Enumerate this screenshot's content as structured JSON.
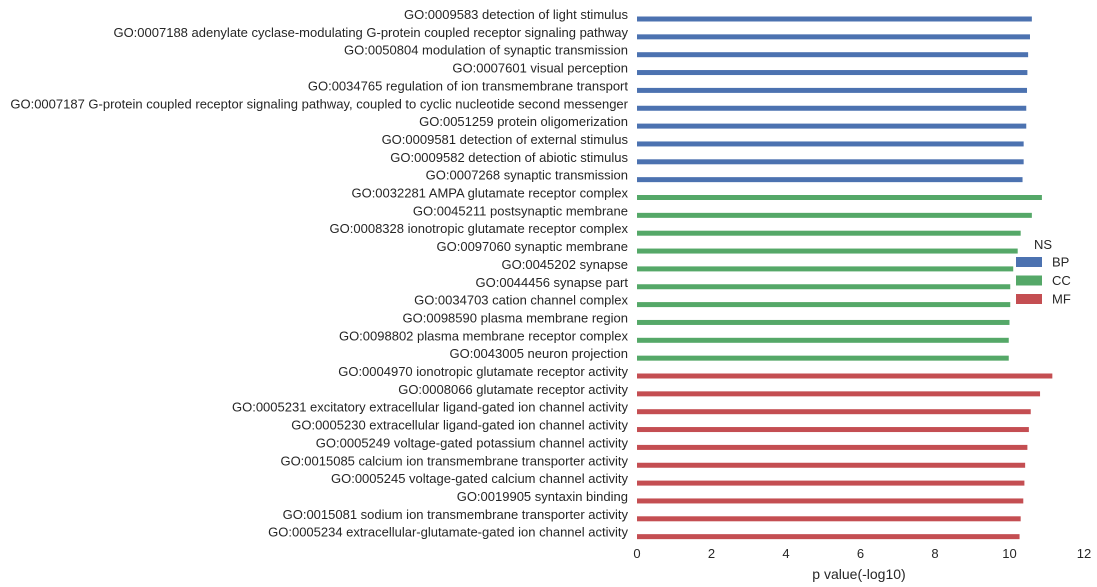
{
  "chart_data": {
    "type": "bar",
    "orientation": "horizontal",
    "xlabel": "p value(-log10)",
    "xlim": [
      0,
      12
    ],
    "xticks": [
      0,
      2,
      4,
      6,
      8,
      10,
      12
    ],
    "grid": false,
    "legend": {
      "title": "NS",
      "placement": "right",
      "entries": [
        {
          "name": "BP",
          "color": "#4c72b0"
        },
        {
          "name": "CC",
          "color": "#55a868"
        },
        {
          "name": "MF",
          "color": "#c44e52"
        }
      ]
    },
    "categories": [
      "GO:0009583 detection of light stimulus",
      "GO:0007188 adenylate cyclase-modulating G-protein coupled receptor signaling pathway",
      "GO:0050804 modulation of synaptic transmission",
      "GO:0007601 visual perception",
      "GO:0034765 regulation of ion transmembrane transport",
      "GO:0007187 G-protein coupled receptor signaling pathway, coupled to cyclic nucleotide second messenger",
      "GO:0051259 protein oligomerization",
      "GO:0009581 detection of external stimulus",
      "GO:0009582 detection of abiotic stimulus",
      "GO:0007268 synaptic transmission",
      "GO:0032281 AMPA glutamate receptor complex",
      "GO:0045211 postsynaptic membrane",
      "GO:0008328 ionotropic glutamate receptor complex",
      "GO:0097060 synaptic membrane",
      "GO:0045202 synapse",
      "GO:0044456 synapse part",
      "GO:0034703 cation channel complex",
      "GO:0098590 plasma membrane region",
      "GO:0098802 plasma membrane receptor complex",
      "GO:0043005 neuron projection",
      "GO:0004970 ionotropic glutamate receptor activity",
      "GO:0008066 glutamate receptor activity",
      "GO:0005231 excitatory extracellular ligand-gated ion channel activity",
      "GO:0005230 extracellular ligand-gated ion channel activity",
      "GO:0005249 voltage-gated potassium channel activity",
      "GO:0015085 calcium ion transmembrane transporter activity",
      "GO:0005245 voltage-gated calcium channel activity",
      "GO:0019905 syntaxin binding",
      "GO:0015081 sodium ion transmembrane transporter activity",
      "GO:0005234 extracellular-glutamate-gated ion channel activity"
    ],
    "series": [
      {
        "name": "BP",
        "color": "#4c72b0",
        "values": [
          10.6,
          10.55,
          10.5,
          10.48,
          10.47,
          10.45,
          10.45,
          10.38,
          10.38,
          10.35,
          null,
          null,
          null,
          null,
          null,
          null,
          null,
          null,
          null,
          null,
          null,
          null,
          null,
          null,
          null,
          null,
          null,
          null,
          null,
          null
        ]
      },
      {
        "name": "CC",
        "color": "#55a868",
        "values": [
          null,
          null,
          null,
          null,
          null,
          null,
          null,
          null,
          null,
          null,
          10.87,
          10.6,
          10.3,
          10.22,
          10.1,
          10.02,
          10.02,
          10.0,
          9.98,
          9.98,
          null,
          null,
          null,
          null,
          null,
          null,
          null,
          null,
          null,
          null
        ]
      },
      {
        "name": "MF",
        "color": "#c44e52",
        "values": [
          null,
          null,
          null,
          null,
          null,
          null,
          null,
          null,
          null,
          null,
          null,
          null,
          null,
          null,
          null,
          null,
          null,
          null,
          null,
          null,
          11.15,
          10.82,
          10.57,
          10.52,
          10.48,
          10.42,
          10.4,
          10.37,
          10.3,
          10.27
        ]
      }
    ]
  }
}
